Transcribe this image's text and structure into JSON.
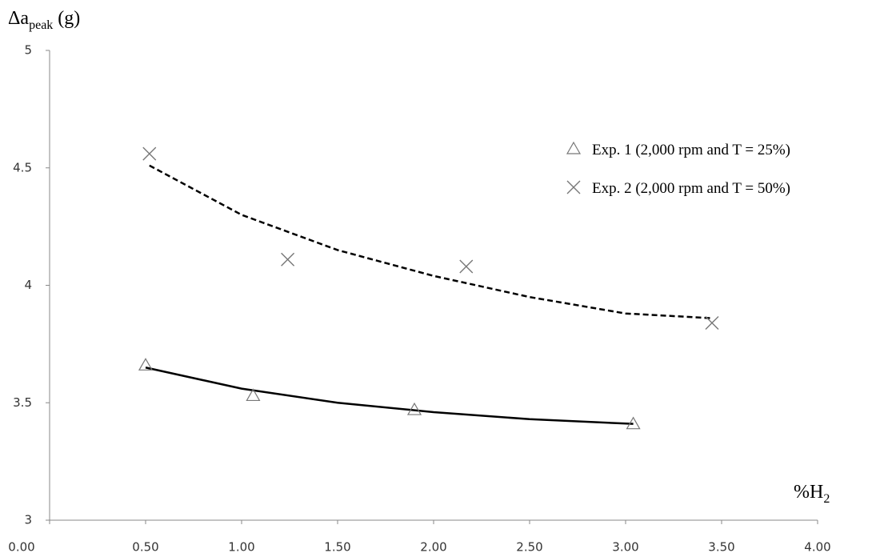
{
  "chart_data": {
    "type": "scatter",
    "y_label": {
      "main": "Δa",
      "sub": "peak",
      "unit": "(g)"
    },
    "x_label": {
      "main": "%H",
      "sub": "2"
    },
    "xlim": [
      0,
      4
    ],
    "ylim": [
      3,
      5
    ],
    "xticks": [
      {
        "value": 0,
        "label": "0.00"
      },
      {
        "value": 0.5,
        "label": "0.50"
      },
      {
        "value": 1,
        "label": "1.00"
      },
      {
        "value": 1.5,
        "label": "1.50"
      },
      {
        "value": 2,
        "label": "2.00"
      },
      {
        "value": 2.5,
        "label": "2.50"
      },
      {
        "value": 3,
        "label": "3.00"
      },
      {
        "value": 3.5,
        "label": "3.50"
      },
      {
        "value": 4,
        "label": "4.00"
      }
    ],
    "yticks": [
      3,
      3.5,
      4,
      4.5,
      5
    ],
    "grid": false,
    "legend": "upper right",
    "series": [
      {
        "name": "Exp. 1 (2,000 rpm and T = 25%)",
        "marker": "triangle",
        "color": "#777777",
        "line_style": "solid",
        "x": [
          0.5,
          1.06,
          1.9,
          3.04
        ],
        "values": [
          3.66,
          3.53,
          3.47,
          3.41
        ],
        "fit_x": [
          0.5,
          1.0,
          1.5,
          2.0,
          2.5,
          3.04
        ],
        "fit_values": [
          3.65,
          3.56,
          3.5,
          3.46,
          3.43,
          3.41
        ]
      },
      {
        "name": "Exp. 2 (2,000 rpm and T = 50%)",
        "marker": "cross",
        "color": "#777777",
        "line_style": "dashed",
        "x": [
          0.52,
          1.24,
          2.17,
          3.45
        ],
        "values": [
          4.56,
          4.11,
          4.08,
          3.84
        ],
        "fit_x": [
          0.52,
          1.0,
          1.5,
          2.0,
          2.5,
          3.0,
          3.45
        ],
        "fit_values": [
          4.51,
          4.3,
          4.15,
          4.04,
          3.95,
          3.88,
          3.86
        ]
      }
    ]
  }
}
